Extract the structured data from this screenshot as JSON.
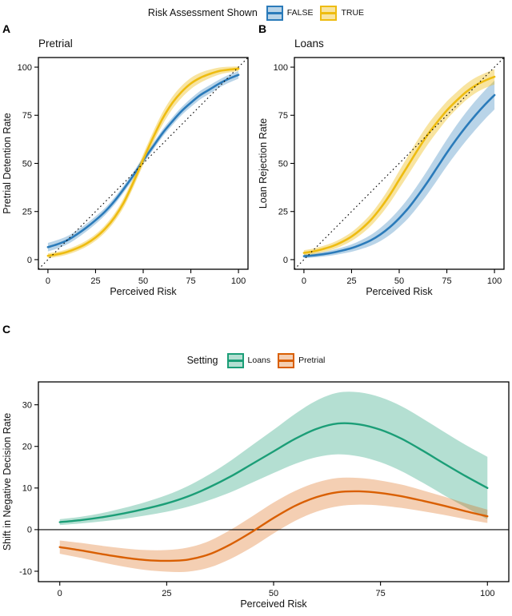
{
  "figure": {
    "background": "#ffffff",
    "panels": [
      {
        "letter": "A"
      },
      {
        "letter": "B"
      },
      {
        "letter": "C"
      }
    ]
  },
  "legend_top": {
    "title": "Risk Assessment Shown",
    "items": [
      {
        "label": "FALSE",
        "line_color": "#2b7bba",
        "fill_color": "rgba(43,123,186,0.33)"
      },
      {
        "label": "TRUE",
        "line_color": "#eebc11",
        "fill_color": "rgba(238,188,17,0.40)"
      }
    ]
  },
  "legend_setting": {
    "title": "Setting",
    "items": [
      {
        "label": "Loans",
        "line_color": "#1b9e77",
        "fill_color": "rgba(27,158,119,0.33)"
      },
      {
        "label": "Pretrial",
        "line_color": "#d95f02",
        "fill_color": "rgba(217,95,2,0.30)"
      }
    ]
  },
  "chart_data": [
    {
      "id": "pretrial",
      "panel": "A",
      "type": "line",
      "title": "Pretrial",
      "xlabel": "Perceived Risk",
      "ylabel": "Pretrial Detention Rate",
      "xlim": [
        -5,
        105
      ],
      "ylim": [
        -5,
        105
      ],
      "xticks": [
        0,
        25,
        50,
        75,
        100
      ],
      "yticks": [
        0,
        25,
        50,
        75,
        100
      ],
      "reference_line": "diagonal_dotted",
      "x": [
        0,
        5,
        10,
        15,
        20,
        25,
        30,
        35,
        40,
        45,
        50,
        55,
        60,
        65,
        70,
        75,
        80,
        85,
        90,
        95,
        100
      ],
      "series": [
        {
          "name": "FALSE",
          "color": "#2b7bba",
          "ribbon": "rgba(43,123,186,0.33)",
          "y": [
            6.5,
            8,
            10,
            13,
            16.5,
            20.5,
            25,
            30.5,
            37,
            44,
            51.5,
            58.5,
            65.5,
            71.5,
            77,
            81.5,
            85.5,
            88.5,
            91.5,
            94,
            96
          ],
          "lower": [
            4.3,
            5.8,
            7.9,
            10.9,
            14.5,
            18.5,
            23.1,
            28.6,
            35.2,
            42.2,
            49.7,
            56.7,
            63.6,
            69.5,
            74.9,
            79.3,
            83.3,
            86.3,
            89.4,
            91.9,
            94.0
          ],
          "upper": [
            8.7,
            10.2,
            12.1,
            15.1,
            18.5,
            22.5,
            26.9,
            32.4,
            38.8,
            45.8,
            53.3,
            60.3,
            67.4,
            73.5,
            79.1,
            83.7,
            87.7,
            90.7,
            93.6,
            96.1,
            98.0
          ]
        },
        {
          "name": "TRUE",
          "color": "#eebc11",
          "ribbon": "rgba(238,188,17,0.40)",
          "y": [
            2,
            2.8,
            4,
            5.8,
            8.2,
            11.5,
            16,
            22,
            30,
            40.5,
            52,
            63,
            73,
            81,
            87,
            91.5,
            94.5,
            96.5,
            98,
            98.7,
            99.2
          ],
          "lower": [
            0.7,
            1.5,
            2.6,
            4.3,
            6.6,
            9.8,
            14.1,
            19.9,
            27.6,
            37.9,
            49.2,
            60,
            69.8,
            77.8,
            83.9,
            88.6,
            91.9,
            94.3,
            96.2,
            97.2,
            98.0
          ],
          "upper": [
            3.3,
            4.1,
            5.4,
            7.3,
            9.8,
            13.2,
            17.9,
            24.1,
            32.4,
            43.1,
            54.8,
            66,
            76.2,
            84.2,
            90.1,
            94.4,
            97.1,
            98.7,
            99.8,
            100.2,
            100.4
          ]
        }
      ]
    },
    {
      "id": "loans",
      "panel": "B",
      "type": "line",
      "title": "Loans",
      "xlabel": "Perceived Risk",
      "ylabel": "Loan Rejection Rate",
      "xlim": [
        -5,
        105
      ],
      "ylim": [
        -5,
        105
      ],
      "xticks": [
        0,
        25,
        50,
        75,
        100
      ],
      "yticks": [
        0,
        25,
        50,
        75,
        100
      ],
      "reference_line": "diagonal_dotted",
      "x": [
        0,
        5,
        10,
        15,
        20,
        25,
        30,
        35,
        40,
        45,
        50,
        55,
        60,
        65,
        70,
        75,
        80,
        85,
        90,
        95,
        100
      ],
      "series": [
        {
          "name": "FALSE",
          "color": "#2b7bba",
          "ribbon": "rgba(43,123,186,0.33)",
          "y": [
            1.8,
            2.2,
            2.8,
            3.6,
            4.7,
            6,
            7.8,
            10,
            13,
            16.8,
            21.5,
            27,
            33.5,
            40.5,
            48,
            55.5,
            62.5,
            69,
            75,
            80.5,
            85.5
          ],
          "lower": [
            0.8,
            1.1,
            1.6,
            2.2,
            3.1,
            4.1,
            5.5,
            7.2,
            9.6,
            12.8,
            16.9,
            21.8,
            27.8,
            34.3,
            41.4,
            48.6,
            55.3,
            61.6,
            67.5,
            73.0,
            78.0
          ],
          "upper": [
            2.8,
            3.3,
            4.0,
            5.0,
            6.3,
            7.9,
            10.1,
            12.8,
            16.4,
            20.8,
            26.1,
            32.2,
            39.2,
            46.7,
            54.6,
            62.4,
            69.7,
            76.4,
            82.5,
            88.0,
            93.0
          ]
        },
        {
          "name": "TRUE",
          "color": "#eebc11",
          "ribbon": "rgba(238,188,17,0.40)",
          "y": [
            3.5,
            4.3,
            5.5,
            7,
            9.2,
            12,
            15.8,
            20.5,
            26.5,
            33.5,
            41.5,
            49.5,
            57.5,
            65,
            71.5,
            77.5,
            82.5,
            87,
            90.5,
            93,
            95
          ],
          "lower": [
            2.1,
            2.8,
            3.9,
            5.2,
            7.2,
            9.7,
            13.1,
            17.4,
            22.9,
            29.4,
            36.9,
            44.5,
            52.3,
            59.8,
            66.5,
            72.8,
            78.1,
            82.8,
            86.5,
            89.1,
            91.0
          ],
          "upper": [
            4.9,
            5.8,
            7.1,
            8.8,
            11.2,
            14.3,
            18.5,
            23.6,
            30.1,
            37.6,
            46.1,
            54.5,
            62.7,
            70.2,
            76.5,
            82.2,
            86.9,
            91.2,
            94.5,
            96.9,
            99.0
          ]
        }
      ]
    },
    {
      "id": "shift",
      "panel": "C",
      "type": "line",
      "title": "",
      "xlabel": "Perceived Risk",
      "ylabel": "Shift in Negative Decision Rate",
      "xlim": [
        -5,
        105
      ],
      "ylim": [
        -12.5,
        35.5
      ],
      "xticks": [
        0,
        25,
        50,
        75,
        100
      ],
      "yticks": [
        -10,
        0,
        10,
        20,
        30
      ],
      "reference_line": "zero_solid",
      "x": [
        0,
        5,
        10,
        15,
        20,
        25,
        30,
        35,
        40,
        45,
        50,
        55,
        60,
        65,
        70,
        75,
        80,
        85,
        90,
        95,
        100
      ],
      "series": [
        {
          "name": "Loans",
          "color": "#1b9e77",
          "ribbon": "rgba(27,158,119,0.33)",
          "y": [
            1.8,
            2.3,
            3.0,
            3.9,
            5.0,
            6.3,
            8.0,
            10.2,
            12.8,
            15.8,
            18.8,
            21.8,
            24.2,
            25.5,
            25.3,
            24.0,
            21.8,
            18.9,
            15.8,
            12.8,
            10.0
          ],
          "lower": [
            1.1,
            1.5,
            2.0,
            2.6,
            3.4,
            4.3,
            5.5,
            7.1,
            9.0,
            11.3,
            13.6,
            15.8,
            17.4,
            18.1,
            17.6,
            16.2,
            14.0,
            11.2,
            8.2,
            5.3,
            2.5
          ],
          "upper": [
            2.5,
            3.1,
            4.0,
            5.2,
            6.6,
            8.3,
            10.5,
            13.3,
            16.6,
            20.3,
            24.0,
            27.8,
            31.0,
            32.9,
            33.0,
            31.8,
            29.6,
            26.6,
            23.4,
            20.3,
            17.5
          ]
        },
        {
          "name": "Pretrial",
          "color": "#d95f02",
          "ribbon": "rgba(217,95,2,0.30)",
          "y": [
            -4.2,
            -5.0,
            -5.9,
            -6.7,
            -7.3,
            -7.5,
            -7.2,
            -5.9,
            -3.5,
            -0.5,
            2.8,
            5.7,
            7.8,
            9.0,
            9.2,
            8.8,
            8.0,
            6.9,
            5.7,
            4.4,
            3.2
          ],
          "lower": [
            -5.8,
            -6.8,
            -7.9,
            -8.9,
            -9.7,
            -10.1,
            -10.1,
            -9.1,
            -7.0,
            -4.2,
            -0.9,
            2.1,
            4.3,
            5.6,
            6.0,
            5.8,
            5.2,
            4.4,
            3.5,
            2.5,
            1.6
          ],
          "upper": [
            -2.6,
            -3.2,
            -3.9,
            -4.5,
            -4.9,
            -4.9,
            -4.3,
            -2.7,
            0.0,
            3.2,
            6.5,
            9.3,
            11.3,
            12.4,
            12.4,
            11.8,
            10.8,
            9.4,
            7.9,
            6.3,
            4.8
          ]
        }
      ]
    }
  ]
}
